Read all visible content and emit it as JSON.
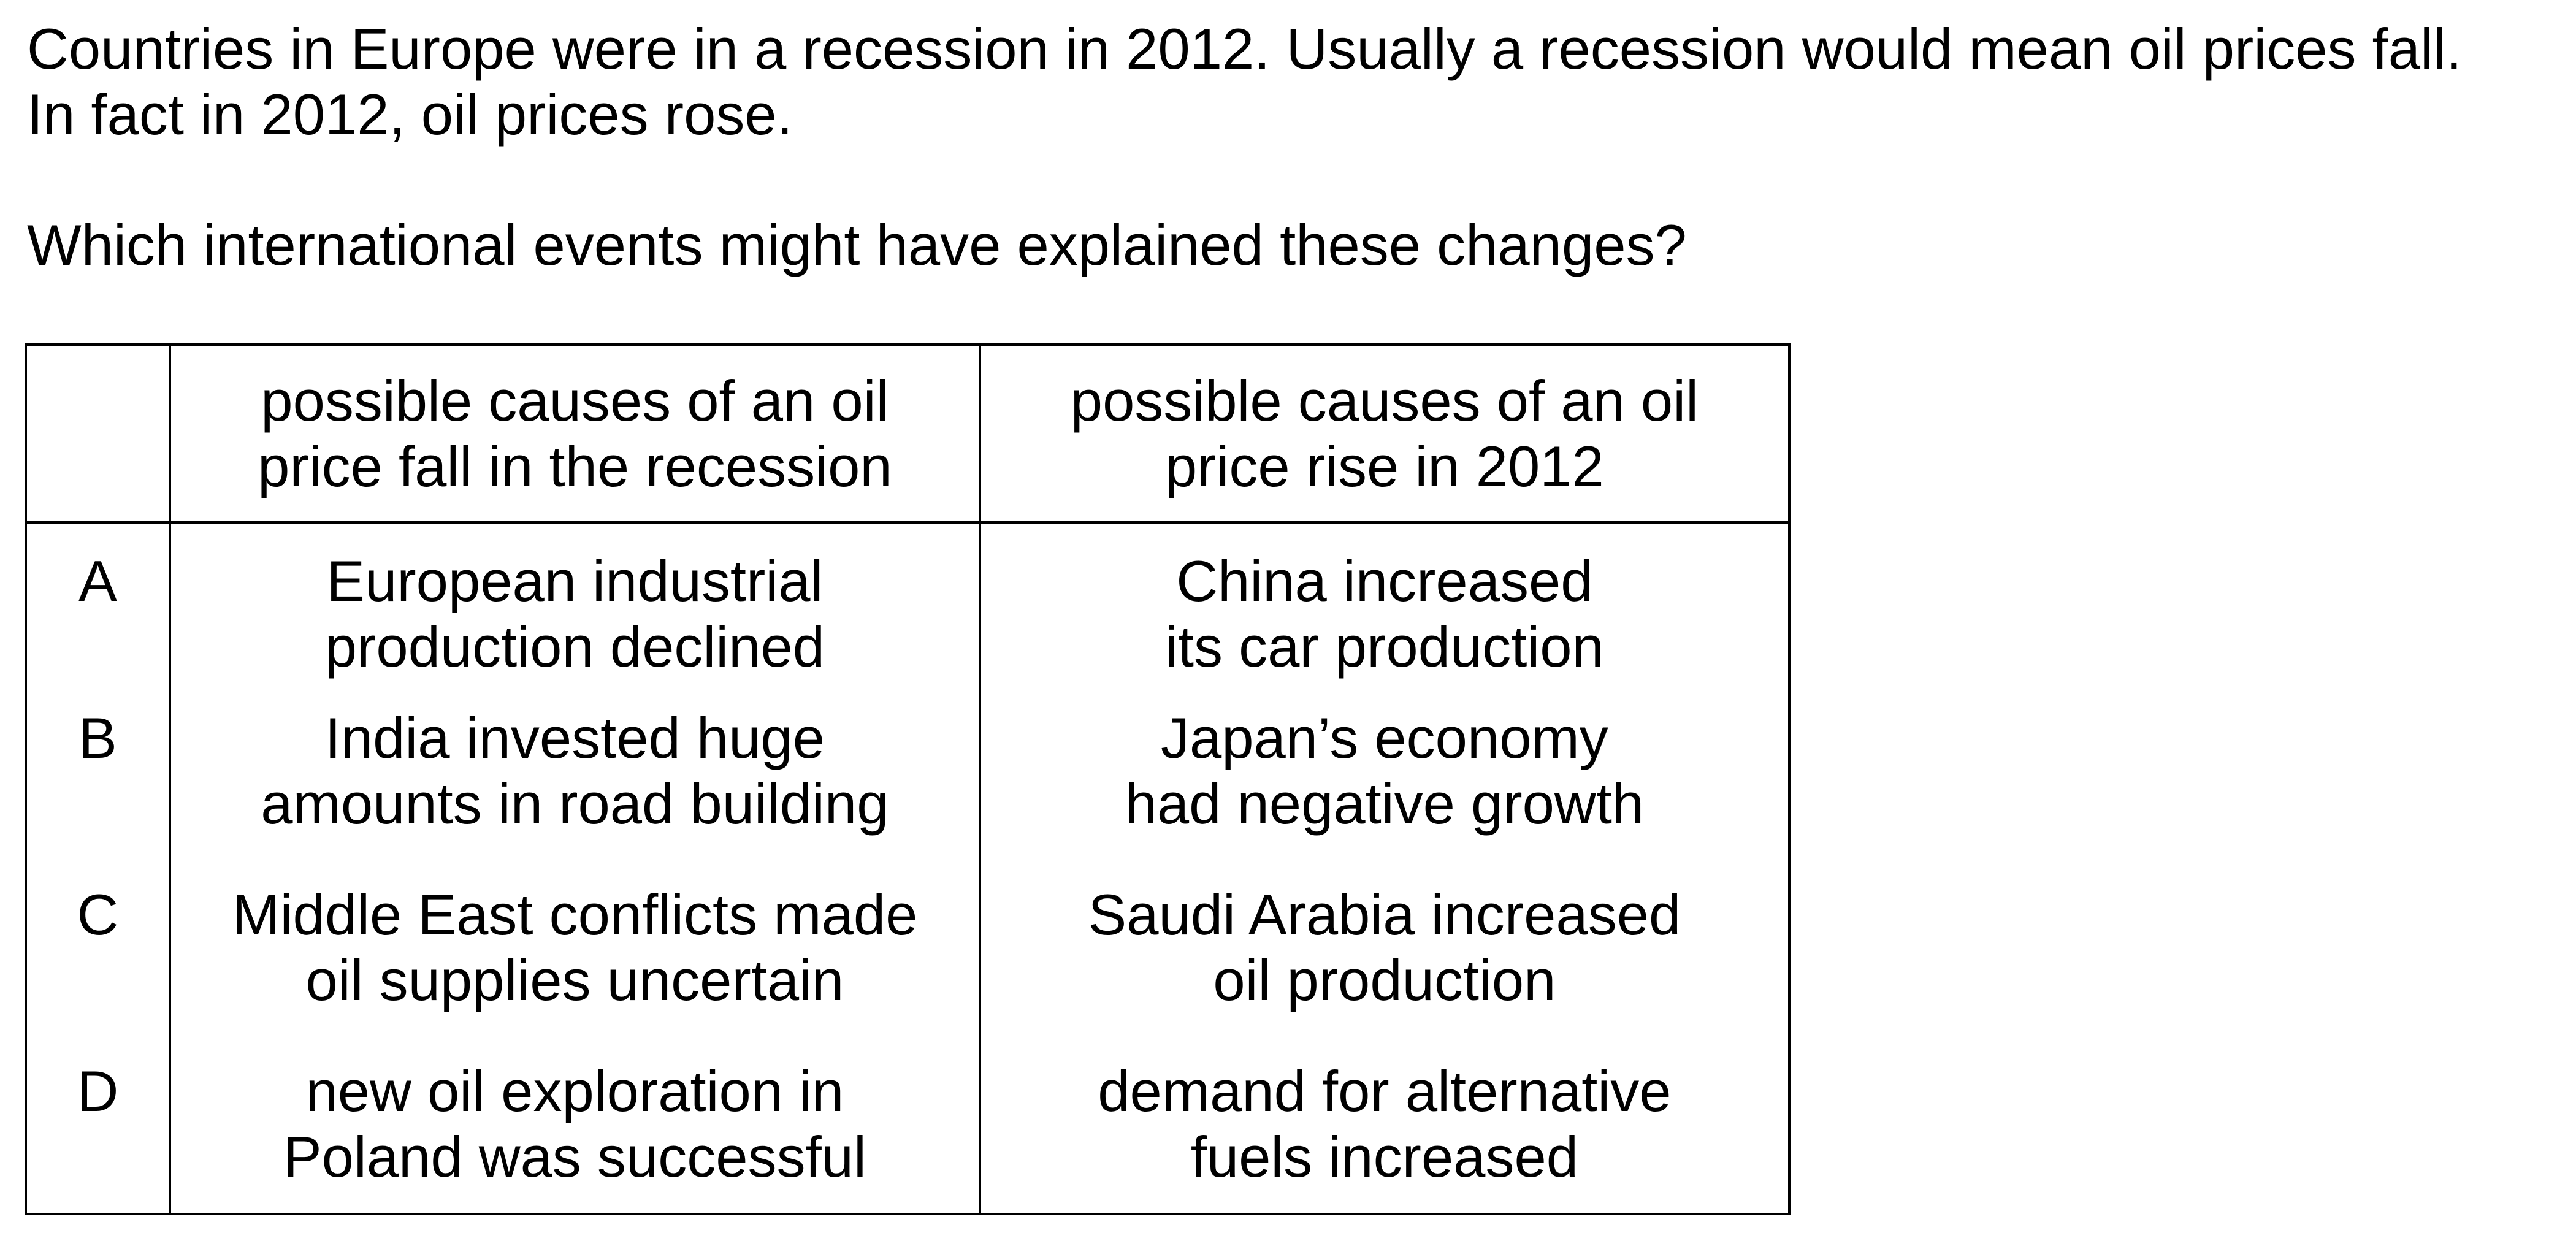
{
  "intro": {
    "line1": "Countries in Europe were in a recession in 2012. Usually a recession would mean oil prices fall.",
    "line2": "In fact in 2012, oil prices rose."
  },
  "question": "Which international events might have explained these changes?",
  "table": {
    "header": {
      "fall_line1": "possible causes of an oil",
      "fall_line2": "price fall in the recession",
      "rise_line1": "possible causes of an oil",
      "rise_line2": "price rise in 2012"
    },
    "rows": [
      {
        "letter": "A",
        "fall_line1": "European industrial",
        "fall_line2": "production declined",
        "rise_line1": "China increased",
        "rise_line2": "its car production"
      },
      {
        "letter": "B",
        "fall_line1": "India invested huge",
        "fall_line2": "amounts in road building",
        "rise_line1": "Japan’s economy",
        "rise_line2": "had negative growth"
      },
      {
        "letter": "C",
        "fall_line1": "Middle East conflicts made",
        "fall_line2": "oil supplies uncertain",
        "rise_line1": "Saudi Arabia increased",
        "rise_line2": "oil production"
      },
      {
        "letter": "D",
        "fall_line1": "new oil exploration in",
        "fall_line2": "Poland was successful",
        "rise_line1": "demand for alternative",
        "rise_line2": "fuels increased"
      }
    ]
  }
}
